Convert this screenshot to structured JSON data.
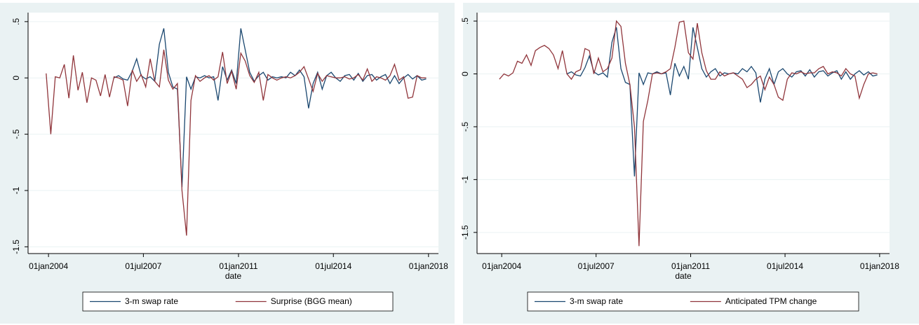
{
  "chart_data": [
    {
      "type": "line",
      "x": [
        "2003-12-01",
        "2004-02-01",
        "2004-04-01",
        "2004-06-01",
        "2004-08-01",
        "2004-10-01",
        "2004-12-01",
        "2005-02-01",
        "2005-04-01",
        "2005-06-01",
        "2005-08-01",
        "2005-10-01",
        "2005-12-01",
        "2006-02-01",
        "2006-04-01",
        "2006-06-01",
        "2006-08-01",
        "2006-10-01",
        "2006-12-01",
        "2007-02-01",
        "2007-04-01",
        "2007-06-01",
        "2007-08-01",
        "2007-10-01",
        "2007-12-01",
        "2008-02-01",
        "2008-04-01",
        "2008-06-01",
        "2008-08-01",
        "2008-10-01",
        "2008-12-01",
        "2009-02-01",
        "2009-04-01",
        "2009-06-01",
        "2009-08-01",
        "2009-10-01",
        "2009-12-01",
        "2010-02-01",
        "2010-04-01",
        "2010-06-01",
        "2010-08-01",
        "2010-10-01",
        "2010-12-01",
        "2011-02-01",
        "2011-04-01",
        "2011-06-01",
        "2011-08-01",
        "2011-10-01",
        "2011-12-01",
        "2012-02-01",
        "2012-04-01",
        "2012-06-01",
        "2012-08-01",
        "2012-10-01",
        "2012-12-01",
        "2013-02-01",
        "2013-04-01",
        "2013-06-01",
        "2013-08-01",
        "2013-10-01",
        "2013-12-01",
        "2014-02-01",
        "2014-04-01",
        "2014-06-01",
        "2014-08-01",
        "2014-10-01",
        "2014-12-01",
        "2015-02-01",
        "2015-04-01",
        "2015-06-01",
        "2015-08-01",
        "2015-10-01",
        "2015-12-01",
        "2016-02-01",
        "2016-04-01",
        "2016-06-01",
        "2016-08-01",
        "2016-10-01",
        "2016-12-01",
        "2017-02-01",
        "2017-04-01",
        "2017-06-01",
        "2017-08-01",
        "2017-10-01",
        "2017-12-01"
      ],
      "series": [
        {
          "name": "3-m swap rate",
          "color": "#1a476f",
          "values": [
            null,
            null,
            null,
            null,
            null,
            null,
            null,
            null,
            null,
            null,
            null,
            null,
            null,
            null,
            null,
            0,
            0.02,
            -0.01,
            -0.02,
            0.06,
            0.17,
            0.02,
            -0.01,
            0.01,
            -0.03,
            0.3,
            0.44,
            0.05,
            -0.08,
            -0.1,
            -0.97,
            0.01,
            -0.1,
            0.01,
            0,
            0.02,
            0,
            0.01,
            -0.2,
            0.1,
            -0.02,
            0.07,
            -0.05,
            0.44,
            0.25,
            0.05,
            -0.03,
            0.02,
            0.05,
            -0.02,
            0.01,
            0,
            0.01,
            0,
            0.05,
            0.02,
            0.07,
            0.01,
            -0.27,
            -0.05,
            0.05,
            -0.1,
            0.02,
            0.05,
            0,
            -0.03,
            0.02,
            0.03,
            -0.02,
            0.04,
            -0.03,
            0.02,
            0.03,
            -0.02,
            0.01,
            0.03,
            -0.05,
            0.02,
            -0.05,
            0,
            0.03,
            -0.01,
            0.02,
            -0.02,
            -0.01
          ]
        },
        {
          "name": "Surprise (BGG mean)",
          "color": "#90353b",
          "values": [
            0.04,
            -0.5,
            0.01,
            0,
            0.12,
            -0.18,
            0.2,
            -0.11,
            0.05,
            -0.22,
            0,
            -0.02,
            -0.16,
            0.03,
            -0.17,
            0.01,
            0,
            -0.02,
            -0.25,
            0.07,
            -0.03,
            0.03,
            -0.08,
            0.17,
            -0.03,
            -0.08,
            0.25,
            -0.02,
            -0.1,
            -0.05,
            -1.0,
            -1.4,
            -0.2,
            0.02,
            -0.03,
            0,
            0.02,
            -0.02,
            0.01,
            0.23,
            -0.05,
            0.06,
            -0.1,
            0.22,
            0.15,
            0.02,
            -0.04,
            0.05,
            -0.2,
            0.03,
            0,
            -0.02,
            0,
            0.01,
            0,
            0.02,
            0.05,
            0.1,
            -0.01,
            -0.12,
            0.04,
            -0.03,
            0.02,
            0.01,
            0,
            0,
            0.01,
            -0.01,
            0,
            0.03,
            -0.02,
            0.08,
            -0.03,
            0.01,
            0,
            -0.02,
            0.02,
            0.12,
            -0.02,
            0.01,
            -0.18,
            -0.17,
            0.02,
            0,
            0
          ]
        }
      ],
      "x_label": "date",
      "xlim": [
        "2003-04-01",
        "2018-05-15"
      ],
      "xticks": [
        {
          "value": "2004-01-01",
          "label": "01jan2004"
        },
        {
          "value": "2007-07-01",
          "label": "01jul2007"
        },
        {
          "value": "2011-01-01",
          "label": "01jan2011"
        },
        {
          "value": "2014-07-01",
          "label": "01jul2014"
        },
        {
          "value": "2018-01-01",
          "label": "01jan2018"
        }
      ],
      "ylim": [
        -1.56,
        0.58
      ],
      "yticks": [
        {
          "value": 0.5,
          "label": ".5"
        },
        0,
        {
          "value": -0.5,
          "label": "-.5"
        },
        -1,
        {
          "value": -1.5,
          "label": "-1.5"
        }
      ],
      "grid": true
    },
    {
      "type": "line",
      "x": [
        "2003-12-01",
        "2004-02-01",
        "2004-04-01",
        "2004-06-01",
        "2004-08-01",
        "2004-10-01",
        "2004-12-01",
        "2005-02-01",
        "2005-04-01",
        "2005-06-01",
        "2005-08-01",
        "2005-10-01",
        "2005-12-01",
        "2006-02-01",
        "2006-04-01",
        "2006-06-01",
        "2006-08-01",
        "2006-10-01",
        "2006-12-01",
        "2007-02-01",
        "2007-04-01",
        "2007-06-01",
        "2007-08-01",
        "2007-10-01",
        "2007-12-01",
        "2008-02-01",
        "2008-04-01",
        "2008-06-01",
        "2008-08-01",
        "2008-10-01",
        "2008-12-01",
        "2009-02-01",
        "2009-04-01",
        "2009-06-01",
        "2009-08-01",
        "2009-10-01",
        "2009-12-01",
        "2010-02-01",
        "2010-04-01",
        "2010-06-01",
        "2010-08-01",
        "2010-10-01",
        "2010-12-01",
        "2011-02-01",
        "2011-04-01",
        "2011-06-01",
        "2011-08-01",
        "2011-10-01",
        "2011-12-01",
        "2012-02-01",
        "2012-04-01",
        "2012-06-01",
        "2012-08-01",
        "2012-10-01",
        "2012-12-01",
        "2013-02-01",
        "2013-04-01",
        "2013-06-01",
        "2013-08-01",
        "2013-10-01",
        "2013-12-01",
        "2014-02-01",
        "2014-04-01",
        "2014-06-01",
        "2014-08-01",
        "2014-10-01",
        "2014-12-01",
        "2015-02-01",
        "2015-04-01",
        "2015-06-01",
        "2015-08-01",
        "2015-10-01",
        "2015-12-01",
        "2016-02-01",
        "2016-04-01",
        "2016-06-01",
        "2016-08-01",
        "2016-10-01",
        "2016-12-01",
        "2017-02-01",
        "2017-04-01",
        "2017-06-01",
        "2017-08-01",
        "2017-10-01",
        "2017-12-01"
      ],
      "series": [
        {
          "name": "3-m swap rate",
          "color": "#1a476f",
          "values": [
            null,
            null,
            null,
            null,
            null,
            null,
            null,
            null,
            null,
            null,
            null,
            null,
            null,
            null,
            null,
            0,
            0.02,
            -0.01,
            -0.02,
            0.06,
            0.17,
            0.02,
            -0.01,
            0.01,
            -0.03,
            0.3,
            0.44,
            0.05,
            -0.08,
            -0.1,
            -0.97,
            0.01,
            -0.1,
            0.01,
            0,
            0.02,
            0,
            0.01,
            -0.2,
            0.1,
            -0.02,
            0.07,
            -0.05,
            0.44,
            0.25,
            0.05,
            -0.03,
            0.02,
            0.05,
            -0.02,
            0.01,
            0,
            0.01,
            0,
            0.05,
            0.02,
            0.07,
            0.01,
            -0.27,
            -0.05,
            0.05,
            -0.1,
            0.02,
            0.05,
            0,
            -0.03,
            0.02,
            0.03,
            -0.02,
            0.04,
            -0.03,
            0.02,
            0.03,
            -0.02,
            0.01,
            0.03,
            -0.05,
            0.02,
            -0.05,
            0,
            0.03,
            -0.01,
            0.02,
            -0.02,
            -0.01
          ]
        },
        {
          "name": "Anticipated TPM change",
          "color": "#90353b",
          "values": [
            -0.05,
            0,
            -0.02,
            0.01,
            0.12,
            0.1,
            0.18,
            0.08,
            0.22,
            0.25,
            0.27,
            0.24,
            0.18,
            0.05,
            0.22,
            0,
            -0.05,
            0.02,
            0.04,
            0.24,
            0.22,
            0,
            0.15,
            0.02,
            0.05,
            0.15,
            0.5,
            0.45,
            0.1,
            -0.1,
            -0.5,
            -1.63,
            -0.45,
            -0.25,
            0,
            0.01,
            0,
            0.02,
            0.05,
            0.25,
            0.49,
            0.5,
            0.2,
            0.14,
            0.48,
            0.2,
            0.03,
            -0.05,
            -0.05,
            0.02,
            -0.02,
            0,
            0.01,
            -0.02,
            -0.05,
            -0.13,
            -0.1,
            -0.05,
            -0.02,
            -0.15,
            -0.03,
            -0.1,
            -0.22,
            -0.25,
            -0.05,
            0.01,
            0,
            0.02,
            0,
            0.01,
            0.01,
            0.05,
            0.07,
            0,
            0.02,
            0.01,
            -0.02,
            0.05,
            0,
            -0.02,
            -0.23,
            -0.1,
            0,
            0.01,
            0
          ]
        }
      ],
      "x_label": "date",
      "xlim": [
        "2003-02-01",
        "2018-05-15"
      ],
      "xticks": [
        {
          "value": "2004-01-01",
          "label": "01jan2004"
        },
        {
          "value": "2007-07-01",
          "label": "01jul2007"
        },
        {
          "value": "2011-01-01",
          "label": "01jan2011"
        },
        {
          "value": "2014-07-01",
          "label": "01jul2014"
        },
        {
          "value": "2018-01-01",
          "label": "01jan2018"
        }
      ],
      "ylim": [
        -1.7,
        0.58
      ],
      "yticks": [
        {
          "value": 0.5,
          "label": ".5"
        },
        0,
        {
          "value": -0.5,
          "label": "-.5"
        },
        -1,
        {
          "value": -1.5,
          "label": "-1.5"
        }
      ],
      "grid": true
    }
  ]
}
